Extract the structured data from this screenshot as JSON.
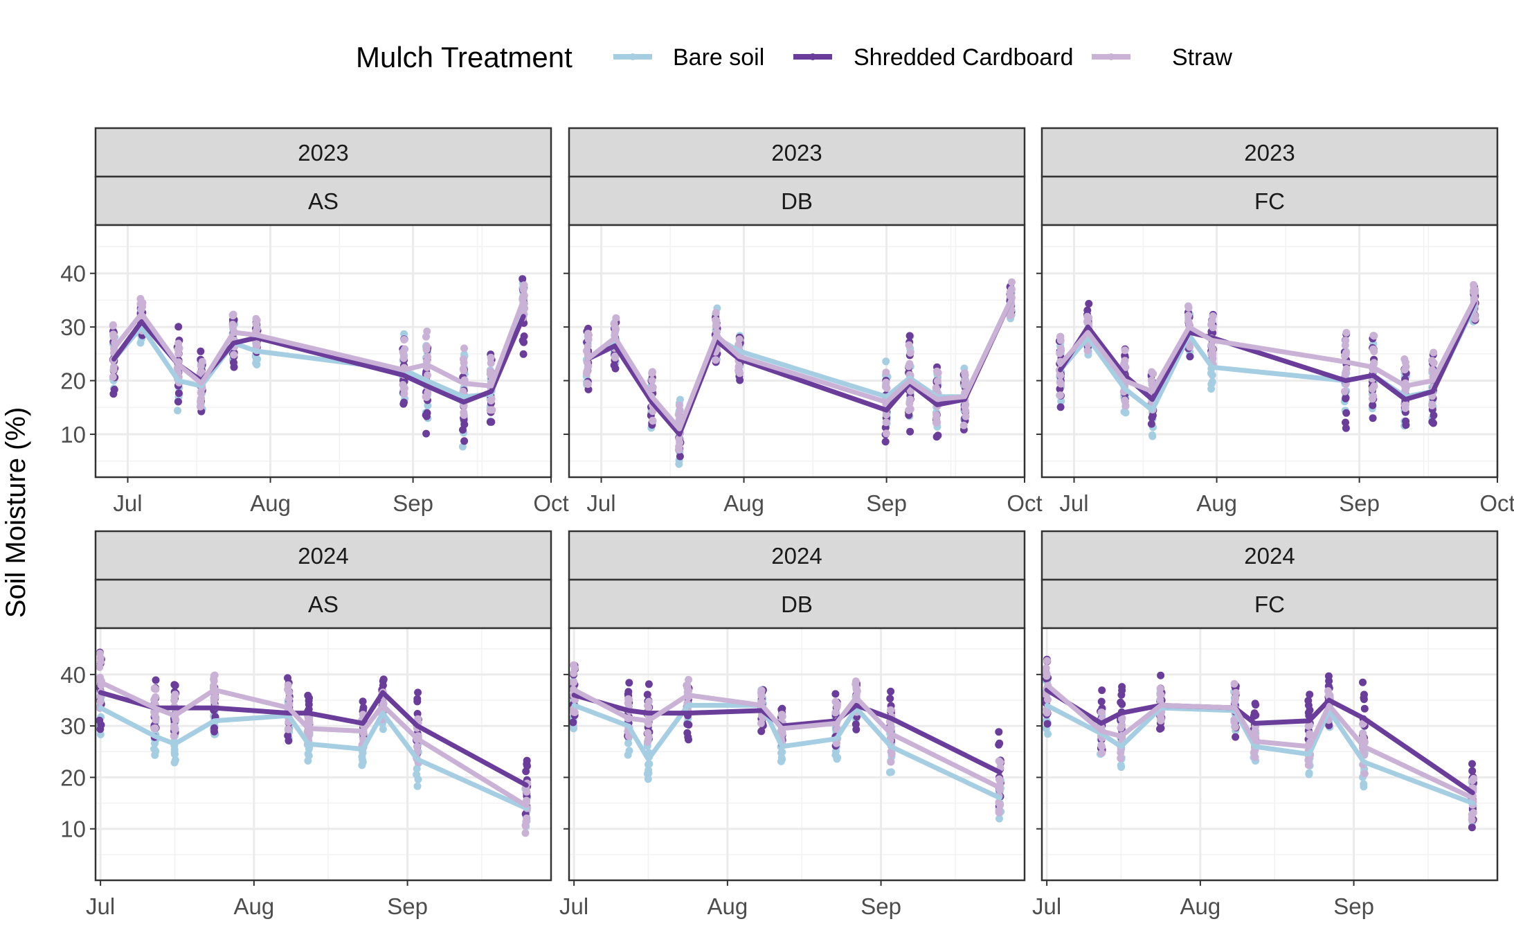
{
  "legend": {
    "title": "Mulch Treatment",
    "items": [
      {
        "name": "Bare soil",
        "color": "#a6cee3"
      },
      {
        "name": "Shredded Cardboard",
        "color": "#6a3d9a"
      },
      {
        "name": "Straw",
        "color": "#cab2d6"
      }
    ]
  },
  "chart_data": {
    "type": "line",
    "ylabel": "Soil Moisture (%)",
    "xlabel": "",
    "legend_position": "top",
    "grid": true,
    "facets": [
      {
        "year": "2023",
        "site": "AS",
        "xlim": [
          "2023-06-24",
          "2023-10-01"
        ],
        "x_ticks": [
          {
            "date": "2023-07-01",
            "label": "Jul"
          },
          {
            "date": "2023-08-01",
            "label": "Aug"
          },
          {
            "date": "2023-09-01",
            "label": "Sep"
          },
          {
            "date": "2023-10-01",
            "label": "Oct"
          }
        ],
        "ylim": [
          2,
          49
        ],
        "y_ticks": [
          10,
          20,
          30,
          40
        ],
        "dates": [
          "2023-06-28",
          "2023-07-04",
          "2023-07-12",
          "2023-07-17",
          "2023-07-24",
          "2023-07-29",
          "2023-08-30",
          "2023-09-04",
          "2023-09-12",
          "2023-09-18",
          "2023-09-25"
        ],
        "series": [
          {
            "name": "Bare soil",
            "values": [
              24,
              30,
              20,
              19,
              27,
              25.5,
              22,
              20,
              17,
              17.5,
              35
            ],
            "spread": [
              5,
              3,
              5,
              5,
              4,
              3,
              6,
              7,
              8,
              5,
              3
            ]
          },
          {
            "name": "Shredded Cardboard",
            "values": [
              24,
              31,
              23,
              20,
              27,
              28,
              21,
              19,
              16,
              18,
              32
            ],
            "spread": [
              6,
              3,
              6,
              5,
              5,
              3,
              6,
              8,
              7,
              6,
              7
            ]
          },
          {
            "name": "Straw",
            "values": [
              26,
              32.5,
              23,
              19.5,
              29,
              28.5,
              22,
              23,
              19.5,
              19,
              35
            ],
            "spread": [
              5,
              3,
              4,
              4,
              4,
              3,
              5,
              7,
              6,
              5,
              3
            ]
          }
        ]
      },
      {
        "year": "2023",
        "site": "DB",
        "xlim": [
          "2023-06-24",
          "2023-10-01"
        ],
        "x_ticks": [
          {
            "date": "2023-07-01",
            "label": "Jul"
          },
          {
            "date": "2023-08-01",
            "label": "Aug"
          },
          {
            "date": "2023-09-01",
            "label": "Sep"
          },
          {
            "date": "2023-10-01",
            "label": "Oct"
          }
        ],
        "ylim": [
          2,
          49
        ],
        "y_ticks": [
          10,
          20,
          30,
          40
        ],
        "dates": [
          "2023-06-28",
          "2023-07-04",
          "2023-07-12",
          "2023-07-18",
          "2023-07-26",
          "2023-07-31",
          "2023-09-01",
          "2023-09-06",
          "2023-09-12",
          "2023-09-18",
          "2023-09-28"
        ],
        "series": [
          {
            "name": "Bare soil",
            "values": [
              24,
              27,
              17,
              11,
              28,
              25.5,
              17,
              20.5,
              17,
              17,
              35
            ],
            "spread": [
              5,
              4,
              5,
              6,
              5,
              3,
              6,
              7,
              5,
              5,
              3
            ]
          },
          {
            "name": "Shredded Cardboard",
            "values": [
              24,
              26.5,
              16,
              10,
              27.5,
              24,
              14.5,
              19.5,
              15.5,
              16.5,
              35
            ],
            "spread": [
              6,
              4,
              5,
              4,
              4,
              4,
              5,
              8,
              6,
              5,
              3
            ]
          },
          {
            "name": "Straw",
            "values": [
              24,
              28,
              17,
              11,
              28.5,
              24.5,
              16,
              20,
              16.5,
              17,
              35
            ],
            "spread": [
              5,
              4,
              5,
              4,
              4,
              3,
              5,
              6,
              5,
              5,
              3
            ]
          }
        ]
      },
      {
        "year": "2023",
        "site": "FC",
        "xlim": [
          "2023-06-24",
          "2023-10-01"
        ],
        "x_ticks": [
          {
            "date": "2023-07-01",
            "label": "Jul"
          },
          {
            "date": "2023-08-01",
            "label": "Aug"
          },
          {
            "date": "2023-09-01",
            "label": "Sep"
          },
          {
            "date": "2023-10-01",
            "label": "Oct"
          }
        ],
        "ylim": [
          2,
          49
        ],
        "y_ticks": [
          10,
          20,
          30,
          40
        ],
        "dates": [
          "2023-06-28",
          "2023-07-04",
          "2023-07-12",
          "2023-07-18",
          "2023-07-26",
          "2023-07-31",
          "2023-08-29",
          "2023-09-04",
          "2023-09-11",
          "2023-09-17",
          "2023-09-26"
        ],
        "series": [
          {
            "name": "Bare soil",
            "values": [
              22,
              28,
              18.5,
              14.5,
              28.5,
              22.5,
              20,
              21,
              17,
              18,
              34
            ],
            "spread": [
              5,
              3,
              5,
              5,
              4,
              4,
              5,
              6,
              5,
              5,
              3
            ]
          },
          {
            "name": "Shredded Cardboard",
            "values": [
              22,
              30,
              21,
              16.5,
              29,
              28,
              20,
              21,
              16.5,
              18,
              34.5
            ],
            "spread": [
              6,
              4,
              5,
              5,
              4,
              4,
              8,
              7,
              5,
              6,
              3
            ]
          },
          {
            "name": "Straw",
            "values": [
              23,
              29,
              20,
              18,
              30,
              27.5,
              23.5,
              22.5,
              19,
              20,
              35
            ],
            "spread": [
              5,
              3,
              5,
              4,
              4,
              4,
              5,
              6,
              5,
              5,
              3
            ]
          }
        ]
      },
      {
        "year": "2024",
        "site": "AS",
        "xlim": [
          "2024-06-30",
          "2024-09-30"
        ],
        "x_ticks": [
          {
            "date": "2024-07-01",
            "label": "Jul"
          },
          {
            "date": "2024-08-01",
            "label": "Aug"
          },
          {
            "date": "2024-09-01",
            "label": "Sep"
          }
        ],
        "ylim": [
          0,
          49
        ],
        "y_ticks": [
          10,
          20,
          30,
          40
        ],
        "dates": [
          "2024-07-01",
          "2024-07-12",
          "2024-07-16",
          "2024-07-24",
          "2024-08-08",
          "2024-08-12",
          "2024-08-23",
          "2024-08-27",
          "2024-09-03",
          "2024-09-25"
        ],
        "series": [
          {
            "name": "Bare soil",
            "values": [
              33.5,
              28,
              26.5,
              31,
              32,
              26.5,
              25.5,
              32.5,
              23.5,
              14
            ],
            "spread": [
              5,
              4,
              4,
              3,
              4,
              3,
              3,
              3,
              5,
              4
            ]
          },
          {
            "name": "Shredded Cardboard",
            "values": [
              36.5,
              33.5,
              33.5,
              33.5,
              32.5,
              32.5,
              30.5,
              36.5,
              30,
              18.5
            ],
            "spread": [
              7,
              5,
              5,
              4,
              6,
              3,
              4,
              3,
              6,
              5
            ]
          },
          {
            "name": "Straw",
            "values": [
              38.5,
              33.5,
              32,
              37,
              33.5,
              29.5,
              29,
              34,
              27.5,
              14.5
            ],
            "spread": [
              5,
              4,
              4,
              3,
              4,
              3,
              3,
              3,
              4,
              5
            ]
          }
        ]
      },
      {
        "year": "2024",
        "site": "DB",
        "xlim": [
          "2024-06-30",
          "2024-09-30"
        ],
        "x_ticks": [
          {
            "date": "2024-07-01",
            "label": "Jul"
          },
          {
            "date": "2024-08-01",
            "label": "Aug"
          },
          {
            "date": "2024-09-01",
            "label": "Sep"
          }
        ],
        "ylim": [
          0,
          49
        ],
        "y_ticks": [
          10,
          20,
          30,
          40
        ],
        "dates": [
          "2024-07-01",
          "2024-07-12",
          "2024-07-16",
          "2024-07-24",
          "2024-08-08",
          "2024-08-12",
          "2024-08-23",
          "2024-08-27",
          "2024-09-03",
          "2024-09-25"
        ],
        "series": [
          {
            "name": "Bare soil",
            "values": [
              34,
              30,
              23.5,
              34,
              34,
              26,
              27.5,
              33.5,
              26,
              16
            ],
            "spread": [
              5,
              5,
              4,
              3,
              3,
              3,
              4,
              3,
              5,
              4
            ]
          },
          {
            "name": "Shredded Cardboard",
            "values": [
              36,
              33,
              32.5,
              32.5,
              33,
              30,
              31,
              34,
              31.5,
              21
            ],
            "spread": [
              6,
              5,
              5,
              5,
              4,
              4,
              5,
              4,
              5,
              7
            ]
          },
          {
            "name": "Straw",
            "values": [
              37,
              31.5,
              31,
              36,
              34,
              29.5,
              30.5,
              35.5,
              28.5,
              18
            ],
            "spread": [
              5,
              4,
              4,
              3,
              3,
              3,
              4,
              3,
              5,
              5
            ]
          }
        ]
      },
      {
        "year": "2024",
        "site": "FC",
        "xlim": [
          "2024-06-30",
          "2024-09-30"
        ],
        "x_ticks": [
          {
            "date": "2024-07-01",
            "label": "Jul"
          },
          {
            "date": "2024-08-01",
            "label": "Aug"
          },
          {
            "date": "2024-09-01",
            "label": "Sep"
          }
        ],
        "ylim": [
          0,
          49
        ],
        "y_ticks": [
          10,
          20,
          30,
          40
        ],
        "dates": [
          "2024-07-01",
          "2024-07-12",
          "2024-07-16",
          "2024-07-24",
          "2024-08-08",
          "2024-08-12",
          "2024-08-23",
          "2024-08-27",
          "2024-09-03",
          "2024-09-25"
        ],
        "series": [
          {
            "name": "Bare soil",
            "values": [
              34,
              28.5,
              26,
              33.5,
              33,
              26,
              24.5,
              33,
              23,
              15
            ],
            "spread": [
              5,
              4,
              4,
              3,
              4,
              3,
              4,
              3,
              5,
              4
            ]
          },
          {
            "name": "Shredded Cardboard",
            "values": [
              37,
              30.5,
              32.5,
              34,
              33.5,
              30.5,
              31,
              35,
              31.5,
              17
            ],
            "spread": [
              6,
              6,
              5,
              5,
              5,
              4,
              5,
              5,
              7,
              6
            ]
          },
          {
            "name": "Straw",
            "values": [
              38,
              29,
              28,
              34,
              33.5,
              27,
              26,
              34,
              26,
              16
            ],
            "spread": [
              5,
              4,
              4,
              3,
              4,
              3,
              4,
              3,
              5,
              4
            ]
          }
        ]
      }
    ]
  }
}
